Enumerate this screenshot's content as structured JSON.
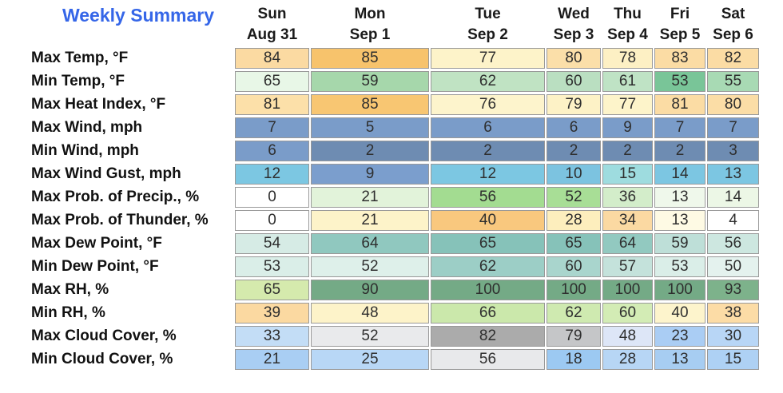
{
  "header": {
    "title": "Weekly Summary",
    "columns": [
      {
        "day": "Sun",
        "date": "Aug 31"
      },
      {
        "day": "Mon",
        "date": "Sep 1"
      },
      {
        "day": "Tue",
        "date": "Sep 2"
      },
      {
        "day": "Wed",
        "date": "Sep 3"
      },
      {
        "day": "Thu",
        "date": "Sep 4"
      },
      {
        "day": "Fri",
        "date": "Sep 5"
      },
      {
        "day": "Sat",
        "date": "Sep 6"
      }
    ]
  },
  "colors": {
    "title": "#3566e8",
    "border": "#999999",
    "cell_text": "#2e2e2e",
    "label_text": "#111111"
  },
  "rows": [
    {
      "label": "Max Temp, °F",
      "cells": [
        {
          "v": "84",
          "bg": "#fbdaa2"
        },
        {
          "v": "85",
          "bg": "#f7c36c"
        },
        {
          "v": "77",
          "bg": "#fdf3c9"
        },
        {
          "v": "80",
          "bg": "#fbdfa9"
        },
        {
          "v": "78",
          "bg": "#fdf0c4"
        },
        {
          "v": "83",
          "bg": "#fbdca4"
        },
        {
          "v": "82",
          "bg": "#fbdca4"
        }
      ]
    },
    {
      "label": "Min Temp, °F",
      "cells": [
        {
          "v": "65",
          "bg": "#e8f7e7"
        },
        {
          "v": "59",
          "bg": "#a6d7ab"
        },
        {
          "v": "62",
          "bg": "#c0e3c3"
        },
        {
          "v": "60",
          "bg": "#badfc1"
        },
        {
          "v": "61",
          "bg": "#bfe3c5"
        },
        {
          "v": "53",
          "bg": "#79c598"
        },
        {
          "v": "55",
          "bg": "#a8dab4"
        }
      ]
    },
    {
      "label": "Max Heat Index, °F",
      "cells": [
        {
          "v": "81",
          "bg": "#fce0a9"
        },
        {
          "v": "85",
          "bg": "#f8c672"
        },
        {
          "v": "76",
          "bg": "#fdf4cc"
        },
        {
          "v": "79",
          "bg": "#fdf2c6"
        },
        {
          "v": "77",
          "bg": "#fdf4ca"
        },
        {
          "v": "81",
          "bg": "#fbdca4"
        },
        {
          "v": "80",
          "bg": "#fbdda6"
        }
      ]
    },
    {
      "label": "Max Wind, mph",
      "cells": [
        {
          "v": "7",
          "bg": "#7a9cc9"
        },
        {
          "v": "5",
          "bg": "#7a9cc9"
        },
        {
          "v": "6",
          "bg": "#7a9cc9"
        },
        {
          "v": "6",
          "bg": "#7a9cc9"
        },
        {
          "v": "9",
          "bg": "#7a9cc9"
        },
        {
          "v": "7",
          "bg": "#7a9cc9"
        },
        {
          "v": "7",
          "bg": "#7a9cc9"
        }
      ]
    },
    {
      "label": "Min Wind, mph",
      "cells": [
        {
          "v": "6",
          "bg": "#7a9cc9"
        },
        {
          "v": "2",
          "bg": "#6e8cb2"
        },
        {
          "v": "2",
          "bg": "#6e8cb2"
        },
        {
          "v": "2",
          "bg": "#6e8cb2"
        },
        {
          "v": "2",
          "bg": "#6e8cb2"
        },
        {
          "v": "2",
          "bg": "#6e8cb2"
        },
        {
          "v": "3",
          "bg": "#6e8cb2"
        }
      ]
    },
    {
      "label": "Max Wind Gust, mph",
      "cells": [
        {
          "v": "12",
          "bg": "#7cc7e2"
        },
        {
          "v": "9",
          "bg": "#7b9ecd"
        },
        {
          "v": "12",
          "bg": "#7cc7e2"
        },
        {
          "v": "10",
          "bg": "#7cc3e0"
        },
        {
          "v": "15",
          "bg": "#9edcdf"
        },
        {
          "v": "14",
          "bg": "#7cc6e2"
        },
        {
          "v": "13",
          "bg": "#7cc6e2"
        }
      ]
    },
    {
      "label": "Max Prob. of Precip., %",
      "cells": [
        {
          "v": "0",
          "bg": "#ffffff"
        },
        {
          "v": "21",
          "bg": "#e2f3da"
        },
        {
          "v": "56",
          "bg": "#a3dc91"
        },
        {
          "v": "52",
          "bg": "#a8de96"
        },
        {
          "v": "36",
          "bg": "#d3edca"
        },
        {
          "v": "13",
          "bg": "#eff8eb"
        },
        {
          "v": "14",
          "bg": "#ecf7e6"
        }
      ]
    },
    {
      "label": "Max Prob. of Thunder, %",
      "cells": [
        {
          "v": "0",
          "bg": "#ffffff"
        },
        {
          "v": "21",
          "bg": "#fdf3c9"
        },
        {
          "v": "40",
          "bg": "#f9c87e"
        },
        {
          "v": "28",
          "bg": "#fdeebd"
        },
        {
          "v": "34",
          "bg": "#fbd9a2"
        },
        {
          "v": "13",
          "bg": "#fefae4"
        },
        {
          "v": "4",
          "bg": "#ffffff"
        }
      ]
    },
    {
      "label": "Max Dew Point, °F",
      "cells": [
        {
          "v": "54",
          "bg": "#d6ebe5"
        },
        {
          "v": "64",
          "bg": "#90c8bf"
        },
        {
          "v": "65",
          "bg": "#86c2b9"
        },
        {
          "v": "65",
          "bg": "#86c2b9"
        },
        {
          "v": "64",
          "bg": "#92c9c0"
        },
        {
          "v": "59",
          "bg": "#bedfd8"
        },
        {
          "v": "56",
          "bg": "#cde7e0"
        }
      ]
    },
    {
      "label": "Min Dew Point, °F",
      "cells": [
        {
          "v": "53",
          "bg": "#daeee8"
        },
        {
          "v": "52",
          "bg": "#def0ea"
        },
        {
          "v": "62",
          "bg": "#9ccec6"
        },
        {
          "v": "60",
          "bg": "#a9d5cd"
        },
        {
          "v": "57",
          "bg": "#c4e2db"
        },
        {
          "v": "53",
          "bg": "#daeee8"
        },
        {
          "v": "50",
          "bg": "#e4f2ee"
        }
      ]
    },
    {
      "label": "Max RH, %",
      "cells": [
        {
          "v": "65",
          "bg": "#d5eaad"
        },
        {
          "v": "90",
          "bg": "#74aa86"
        },
        {
          "v": "100",
          "bg": "#74aa86"
        },
        {
          "v": "100",
          "bg": "#74aa86"
        },
        {
          "v": "100",
          "bg": "#74aa86"
        },
        {
          "v": "100",
          "bg": "#74aa86"
        },
        {
          "v": "93",
          "bg": "#7db28b"
        }
      ]
    },
    {
      "label": "Min RH, %",
      "cells": [
        {
          "v": "39",
          "bg": "#fbd9a1"
        },
        {
          "v": "48",
          "bg": "#fdf3c9"
        },
        {
          "v": "66",
          "bg": "#cbe8ab"
        },
        {
          "v": "62",
          "bg": "#cfeab0"
        },
        {
          "v": "60",
          "bg": "#d3ecb5"
        },
        {
          "v": "40",
          "bg": "#fdf4cc"
        },
        {
          "v": "38",
          "bg": "#fcdca6"
        }
      ]
    },
    {
      "label": "Max Cloud Cover, %",
      "cells": [
        {
          "v": "33",
          "bg": "#c3ddf6"
        },
        {
          "v": "52",
          "bg": "#e9eaec"
        },
        {
          "v": "82",
          "bg": "#ababab"
        },
        {
          "v": "79",
          "bg": "#c5c6c8"
        },
        {
          "v": "48",
          "bg": "#dde6f7"
        },
        {
          "v": "23",
          "bg": "#aacdf4"
        },
        {
          "v": "30",
          "bg": "#b8d6f6"
        }
      ]
    },
    {
      "label": "Min Cloud Cover, %",
      "cells": [
        {
          "v": "21",
          "bg": "#a9cef3"
        },
        {
          "v": "25",
          "bg": "#b8d7f6"
        },
        {
          "v": "56",
          "bg": "#e8e9eb"
        },
        {
          "v": "18",
          "bg": "#9cc9f2"
        },
        {
          "v": "28",
          "bg": "#b7d6f5"
        },
        {
          "v": "13",
          "bg": "#a7cdf2"
        },
        {
          "v": "15",
          "bg": "#aed1f4"
        }
      ]
    }
  ],
  "chart_data": {
    "type": "table",
    "title": "Weekly Summary",
    "columns": [
      "Sun Aug 31",
      "Mon Sep 1",
      "Tue Sep 2",
      "Wed Sep 3",
      "Thu Sep 4",
      "Fri Sep 5",
      "Sat Sep 6"
    ],
    "series": [
      {
        "name": "Max Temp, °F",
        "values": [
          84,
          85,
          77,
          80,
          78,
          83,
          82
        ]
      },
      {
        "name": "Min Temp, °F",
        "values": [
          65,
          59,
          62,
          60,
          61,
          53,
          55
        ]
      },
      {
        "name": "Max Heat Index, °F",
        "values": [
          81,
          85,
          76,
          79,
          77,
          81,
          80
        ]
      },
      {
        "name": "Max Wind, mph",
        "values": [
          7,
          5,
          6,
          6,
          9,
          7,
          7
        ]
      },
      {
        "name": "Min Wind, mph",
        "values": [
          6,
          2,
          2,
          2,
          2,
          2,
          3
        ]
      },
      {
        "name": "Max Wind Gust, mph",
        "values": [
          12,
          9,
          12,
          10,
          15,
          14,
          13
        ]
      },
      {
        "name": "Max Prob. of Precip., %",
        "values": [
          0,
          21,
          56,
          52,
          36,
          13,
          14
        ]
      },
      {
        "name": "Max Prob. of Thunder, %",
        "values": [
          0,
          21,
          40,
          28,
          34,
          13,
          4
        ]
      },
      {
        "name": "Max Dew Point, °F",
        "values": [
          54,
          64,
          65,
          65,
          64,
          59,
          56
        ]
      },
      {
        "name": "Min Dew Point, °F",
        "values": [
          53,
          52,
          62,
          60,
          57,
          53,
          50
        ]
      },
      {
        "name": "Max RH, %",
        "values": [
          65,
          90,
          100,
          100,
          100,
          100,
          93
        ]
      },
      {
        "name": "Min RH, %",
        "values": [
          39,
          48,
          66,
          62,
          60,
          40,
          38
        ]
      },
      {
        "name": "Max Cloud Cover, %",
        "values": [
          33,
          52,
          82,
          79,
          48,
          23,
          30
        ]
      },
      {
        "name": "Min Cloud Cover, %",
        "values": [
          21,
          25,
          56,
          18,
          28,
          13,
          15
        ]
      }
    ]
  }
}
